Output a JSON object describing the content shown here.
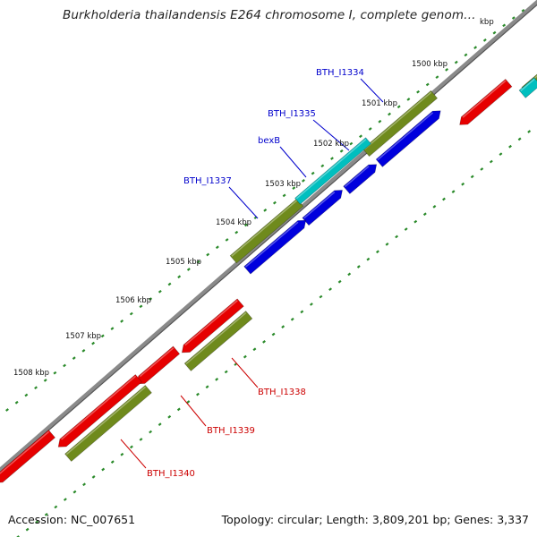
{
  "title": "Burkholderia thailandensis E264 chromosome I, complete genom…",
  "footer": {
    "accession": "Accession: NC_007651",
    "topology": "Topology: circular; Length: 3,809,201 bp; Genes: 3,337"
  },
  "colors": {
    "gene_forward_cds": "#0000dd",
    "gene_forward_orf": "#6f8a1c",
    "gene_forward_highlight": "#00bfbf",
    "gene_reverse_cds": "#e60000",
    "gene_reverse_orf": "#6f8a1c",
    "backbone": "#8a8a8a",
    "ticks": "#2a8a2a",
    "forward_label": "#0000cc",
    "reverse_label": "#cc0000"
  },
  "ticks": [
    {
      "label": "1500 kbp",
      "value": 1500
    },
    {
      "label": "1501 kbp",
      "value": 1501
    },
    {
      "label": "1502 kbp",
      "value": 1502
    },
    {
      "label": "1503 kbp",
      "value": 1503
    },
    {
      "label": "1504 kbp",
      "value": 1504
    },
    {
      "label": "1505 kbp",
      "value": 1505
    },
    {
      "label": "1506 kbp",
      "value": 1506
    },
    {
      "label": "1507 kbp",
      "value": 1507
    },
    {
      "label": "1508 kbp",
      "value": 1508
    },
    {
      "label": "kbp",
      "value": 1499
    }
  ],
  "gene_labels": [
    {
      "text": "BTH_I1334",
      "strand": "forward"
    },
    {
      "text": "BTH_I1335",
      "strand": "forward"
    },
    {
      "text": "bexB",
      "strand": "forward"
    },
    {
      "text": "BTH_I1337",
      "strand": "forward"
    },
    {
      "text": "BTH_I1338",
      "strand": "reverse"
    },
    {
      "text": "BTH_I1339",
      "strand": "reverse"
    },
    {
      "text": "BTH_I1340",
      "strand": "reverse"
    }
  ]
}
